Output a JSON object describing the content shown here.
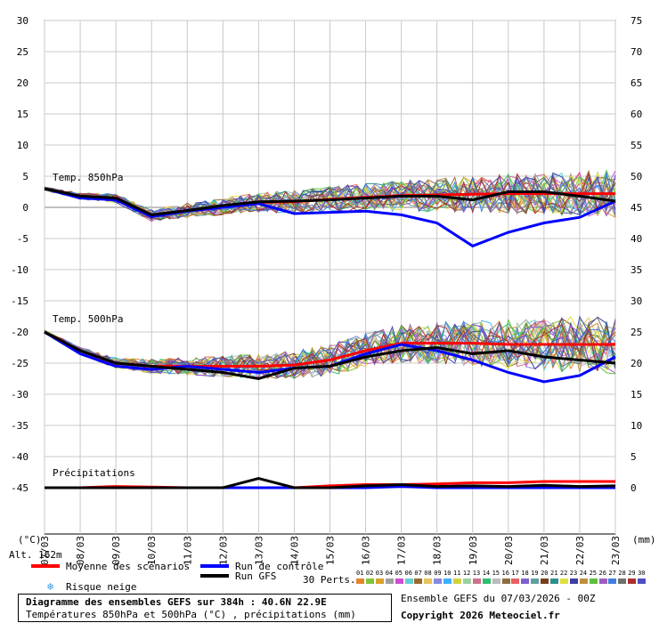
{
  "chart_data": {
    "type": "line",
    "title": "Diagramme des ensembles GEFS sur 384h : 40.6N 22.9E",
    "subtitle": "Températures 850hPa et 500hPa (°C) , précipitations (mm)",
    "left_axis": {
      "unit": "(°C)",
      "ticks": [
        30,
        25,
        20,
        15,
        10,
        5,
        0,
        -5,
        -10,
        -15,
        -20,
        -25,
        -30,
        -35,
        -40,
        -45
      ],
      "range": [
        -45,
        30
      ]
    },
    "right_axis": {
      "unit": "(mm)",
      "ticks": [
        75,
        70,
        65,
        60,
        55,
        50,
        45,
        40,
        35,
        30,
        25,
        20,
        15,
        10,
        5,
        0
      ],
      "range": [
        0,
        75
      ]
    },
    "x_labels": [
      "07/03",
      "08/03",
      "09/03",
      "10/03",
      "11/03",
      "12/03",
      "13/03",
      "14/03",
      "15/03",
      "16/03",
      "17/03",
      "18/03",
      "19/03",
      "20/03",
      "21/03",
      "22/03",
      "23/03"
    ],
    "panel_labels": {
      "t850": "Temp. 850hPa",
      "t500": "Temp. 500hPa",
      "precip": "Précipitations"
    },
    "altitude_label": "Alt. 162m",
    "grid": true,
    "series": [
      {
        "name": "Moyenne des scénarios",
        "color": "#ff0000",
        "t850": [
          3,
          1.8,
          1.5,
          -1.3,
          -0.5,
          0.2,
          0.8,
          0.9,
          1.3,
          1.6,
          1.9,
          2.0,
          2.1,
          2.2,
          2.2,
          2.2,
          2.2
        ],
        "t500": [
          -20,
          -23,
          -25,
          -25.5,
          -25.5,
          -25.5,
          -25.5,
          -25.3,
          -24.5,
          -23,
          -21.8,
          -21.8,
          -21.8,
          -22,
          -22,
          -22,
          -22
        ],
        "precip": [
          0,
          0,
          0.2,
          0.1,
          0,
          0,
          0,
          0,
          0.3,
          0.5,
          0.5,
          0.6,
          0.8,
          0.8,
          1.0,
          1.0,
          1.0
        ]
      },
      {
        "name": "Run de contrôle",
        "color": "#0000ff",
        "t850": [
          3,
          1.5,
          1.2,
          -1.5,
          -0.6,
          0,
          0.6,
          -1.0,
          -0.8,
          -0.6,
          -1.2,
          -2.5,
          -6.2,
          -4,
          -2.5,
          -1.6,
          1.0
        ],
        "t500": [
          -20,
          -23.5,
          -25.5,
          -26,
          -25.5,
          -26,
          -26.5,
          -25.8,
          -25.5,
          -23.5,
          -22,
          -23,
          -24.5,
          -26.5,
          -28,
          -27,
          -24
        ],
        "precip": [
          0,
          0,
          0,
          0,
          0,
          0,
          0,
          0,
          0,
          0,
          0.2,
          0,
          0,
          0,
          0,
          0,
          0
        ]
      },
      {
        "name": "Run GFS",
        "color": "#000000",
        "t850": [
          3,
          1.8,
          1.5,
          -1.2,
          -0.5,
          0.3,
          0.9,
          1.0,
          1.2,
          1.5,
          1.8,
          1.8,
          1.2,
          2.5,
          2.5,
          1.8,
          1.0
        ],
        "t500": [
          -20,
          -23,
          -25,
          -25.5,
          -26,
          -26.5,
          -27.5,
          -25.8,
          -25.5,
          -24,
          -23,
          -22.5,
          -23.5,
          -23,
          -24,
          -24.5,
          -25
        ],
        "precip": [
          0,
          0,
          0,
          0,
          0,
          0,
          1.5,
          0,
          0,
          0.3,
          0.5,
          0.2,
          0.3,
          0.2,
          0.4,
          0.2,
          0.3
        ]
      }
    ],
    "perturbations": {
      "label": "30 Perts.",
      "ids": [
        "01",
        "02",
        "03",
        "04",
        "05",
        "06",
        "07",
        "08",
        "09",
        "10",
        "11",
        "12",
        "13",
        "14",
        "15",
        "16",
        "17",
        "18",
        "19",
        "20",
        "21",
        "22",
        "23",
        "24",
        "25",
        "26",
        "27",
        "28",
        "29",
        "30"
      ],
      "colors": [
        "#e3862e",
        "#7fc63a",
        "#d9a22a",
        "#a0a0a0",
        "#ce4ed0",
        "#67cfcf",
        "#9b6b2e",
        "#e8c25a",
        "#8888dd",
        "#40b0ff",
        "#cfd340",
        "#9ad0a0",
        "#d07090",
        "#2fbf6f",
        "#bbbbbb",
        "#8f6f3f",
        "#e86060",
        "#7f5fcf",
        "#60a0a0",
        "#7a3f1f",
        "#2f8f8f",
        "#e0e040",
        "#3f3f9f",
        "#bf8f3f",
        "#5fbf3f",
        "#9f5fbf",
        "#3f7fdf",
        "#6f6f6f",
        "#af2f2f",
        "#4f4fbf"
      ]
    },
    "snow_risk_label": "Risque neige"
  },
  "footer": {
    "title": "Diagramme des ensembles GEFS sur 384h : 40.6N 22.9E",
    "subtitle": "Températures 850hPa et 500hPa (°C) , précipitations (mm)",
    "run_info": "Ensemble GEFS du 07/03/2026 - 00Z",
    "copyright": "Copyright 2026 Meteociel.fr"
  },
  "colors": {
    "grid": "#c8c8c8",
    "background": "#ffffff",
    "zero_line": "#808080"
  }
}
